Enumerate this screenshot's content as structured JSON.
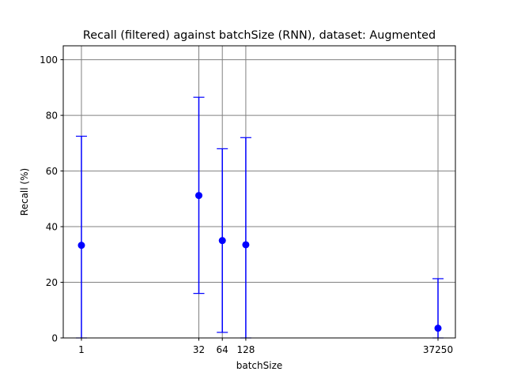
{
  "chart_data": {
    "type": "scatter",
    "title": "Recall (filtered) against batchSize (RNN), dataset: Augmented",
    "xlabel": "batchSize",
    "ylabel": "Recall (%)",
    "x_scale": "log2",
    "x_ticks": [
      1,
      32,
      64,
      128,
      37250
    ],
    "x_tick_labels": [
      "1",
      "32",
      "64",
      "128",
      "37250"
    ],
    "xlim": [
      1,
      37250
    ],
    "ylim": [
      0,
      105
    ],
    "y_ticks": [
      0,
      20,
      40,
      60,
      80,
      100
    ],
    "y_tick_labels": [
      "0",
      "20",
      "40",
      "60",
      "80",
      "100"
    ],
    "grid": true,
    "color": "#0000ff",
    "grid_color": "#808080",
    "series": [
      {
        "points": [
          {
            "x": 1,
            "y": 33.3,
            "err_low": 0,
            "err_high": 72.5
          },
          {
            "x": 32,
            "y": 51.2,
            "err_low": 16.0,
            "err_high": 86.5
          },
          {
            "x": 64,
            "y": 35.0,
            "err_low": 2.0,
            "err_high": 68.0
          },
          {
            "x": 128,
            "y": 33.5,
            "err_low": 0,
            "err_high": 72.0
          },
          {
            "x": 37250,
            "y": 3.5,
            "err_low": 0,
            "err_high": 21.3
          }
        ]
      }
    ]
  }
}
